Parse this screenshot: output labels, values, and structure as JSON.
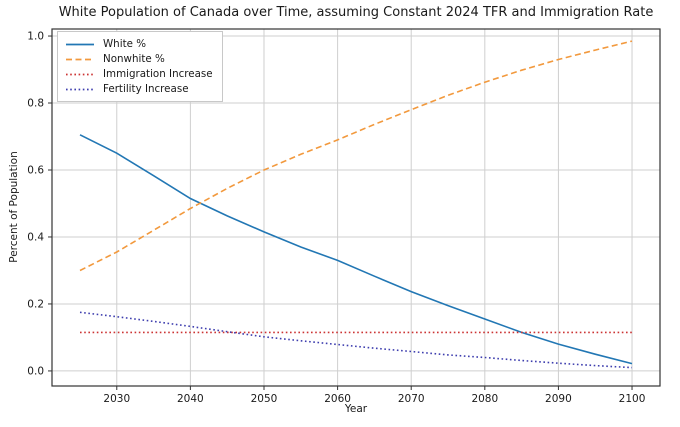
{
  "chart_data": {
    "type": "line",
    "title": "White Population of Canada over Time, assuming Constant 2024 TFR and Immigration Rate",
    "xlabel": "Year",
    "ylabel": "Percent of Population",
    "xlim": [
      2021.2,
      2103.8
    ],
    "ylim": [
      -0.045,
      1.021
    ],
    "x_ticks": [
      2030,
      2040,
      2050,
      2060,
      2070,
      2080,
      2090,
      2100
    ],
    "y_ticks": [
      0.0,
      0.2,
      0.4,
      0.6,
      0.8,
      1.0
    ],
    "grid": true,
    "legend_position": "upper-left",
    "x": [
      2025,
      2030,
      2035,
      2040,
      2045,
      2050,
      2055,
      2060,
      2065,
      2070,
      2075,
      2080,
      2085,
      2090,
      2095,
      2100
    ],
    "series": [
      {
        "name": "White %",
        "color": "#2277b4",
        "style": "solid",
        "values": [
          0.705,
          0.65,
          0.583,
          0.515,
          0.463,
          0.415,
          0.37,
          0.33,
          0.283,
          0.237,
          0.195,
          0.155,
          0.115,
          0.08,
          0.05,
          0.022
        ]
      },
      {
        "name": "Nonwhite %",
        "color": "#f2993d",
        "style": "dashed",
        "values": [
          0.3,
          0.355,
          0.42,
          0.485,
          0.545,
          0.6,
          0.647,
          0.69,
          0.736,
          0.78,
          0.823,
          0.862,
          0.898,
          0.93,
          0.958,
          0.985
        ]
      },
      {
        "name": "Immigration Increase",
        "color": "#cc3333",
        "style": "dotted",
        "values": [
          0.115,
          0.115,
          0.115,
          0.115,
          0.115,
          0.115,
          0.115,
          0.115,
          0.115,
          0.115,
          0.115,
          0.115,
          0.115,
          0.115,
          0.115,
          0.115
        ]
      },
      {
        "name": "Fertility Increase",
        "color": "#3d3dae",
        "style": "dotted",
        "values": [
          0.175,
          0.162,
          0.148,
          0.133,
          0.117,
          0.102,
          0.09,
          0.079,
          0.068,
          0.058,
          0.048,
          0.04,
          0.031,
          0.023,
          0.016,
          0.01
        ]
      }
    ]
  },
  "colors": {
    "background": "#ffffff",
    "grid": "#cfcfcf",
    "spine": "#333333",
    "tick_text": "#1a1a1a"
  }
}
